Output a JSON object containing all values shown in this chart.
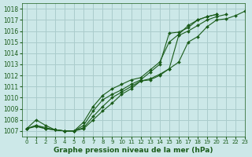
{
  "xlabel": "Graphe pression niveau de la mer (hPa)",
  "xlim": [
    -0.5,
    23
  ],
  "ylim": [
    1006.5,
    1018.5
  ],
  "yticks": [
    1007,
    1008,
    1009,
    1010,
    1011,
    1012,
    1013,
    1014,
    1015,
    1016,
    1017,
    1018
  ],
  "xticks": [
    0,
    1,
    2,
    3,
    4,
    5,
    6,
    7,
    8,
    9,
    10,
    11,
    12,
    13,
    14,
    15,
    16,
    17,
    18,
    19,
    20,
    21,
    22,
    23
  ],
  "bg_color": "#cce8e8",
  "grid_color": "#aacccc",
  "line_color": "#1a5c1a",
  "lines": [
    [
      1007.2,
      1008.0,
      1007.5,
      1007.1,
      1007.0,
      1007.0,
      1007.2,
      1008.0,
      1008.8,
      1009.5,
      1010.3,
      1010.8,
      1011.5,
      1011.6,
      1012.0,
      1012.6,
      1013.2,
      1015.0,
      1015.5,
      1016.4,
      1017.0,
      1017.1,
      1017.4,
      1017.8
    ],
    [
      1007.2,
      1007.5,
      1007.3,
      1007.1,
      1007.0,
      1007.0,
      1007.3,
      1008.3,
      1009.2,
      1010.0,
      1010.5,
      1011.0,
      1011.5,
      1011.7,
      1012.1,
      1012.6,
      1015.6,
      1016.0,
      1016.5,
      1017.0,
      1017.3,
      1017.5,
      null,
      null
    ],
    [
      1007.2,
      1007.4,
      1007.2,
      1007.1,
      1007.0,
      1007.0,
      1007.5,
      1008.8,
      1009.8,
      1010.3,
      1010.7,
      1011.2,
      1011.6,
      1012.3,
      1013.0,
      1015.8,
      1015.9,
      1016.3,
      1017.0,
      1017.3,
      1017.5,
      null,
      null,
      null
    ],
    [
      1007.2,
      1007.5,
      1007.2,
      1007.1,
      1007.0,
      1007.0,
      1007.8,
      1009.2,
      1010.2,
      1010.8,
      1011.2,
      1011.6,
      1011.8,
      1012.5,
      1013.2,
      1015.0,
      1015.7,
      1016.5,
      1017.0,
      1017.3,
      1017.5,
      null,
      null,
      null
    ]
  ]
}
